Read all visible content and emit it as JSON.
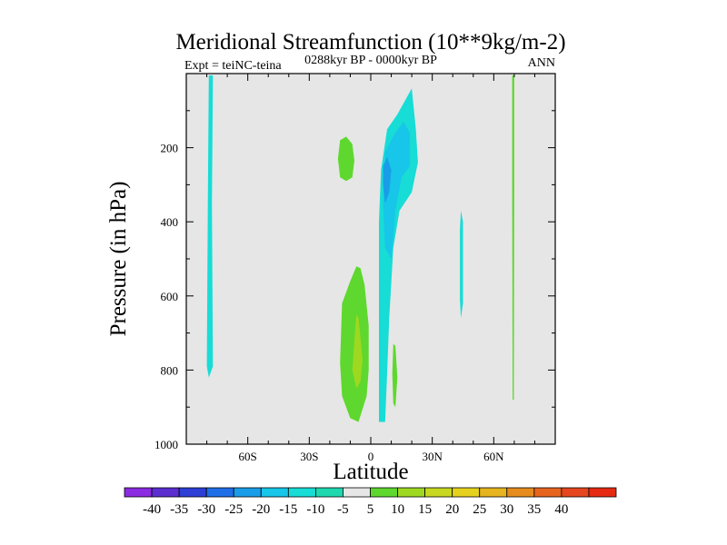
{
  "chart_data": {
    "type": "contour",
    "title": "Meridional Streamfunction (10**9kg/m-2)",
    "left_label": "Expt = teiNC-teina",
    "center_label": "0288kyr BP - 0000kyr BP",
    "right_label": "ANN",
    "xlabel": "Latitude",
    "ylabel": "Pressure (in hPa)",
    "xlim": [
      -90,
      90
    ],
    "ylim": [
      1000,
      0
    ],
    "x_ticks": [
      {
        "value": -60,
        "label": "60S"
      },
      {
        "value": -30,
        "label": "30S"
      },
      {
        "value": 0,
        "label": "0"
      },
      {
        "value": 30,
        "label": "30N"
      },
      {
        "value": 60,
        "label": "60N"
      }
    ],
    "y_ticks": [
      {
        "value": 200,
        "label": "200"
      },
      {
        "value": 400,
        "label": "400"
      },
      {
        "value": 600,
        "label": "600"
      },
      {
        "value": 800,
        "label": "800"
      },
      {
        "value": 1000,
        "label": "1000"
      }
    ],
    "background_color": "#e6e6e6",
    "colorbar": {
      "colors": [
        "#8b2be2",
        "#5c2ed0",
        "#2e3fd6",
        "#1f6ee8",
        "#1a9de8",
        "#17c6e8",
        "#18dcd6",
        "#1ed8b0",
        "#e6e6e6",
        "#5ed82e",
        "#9ed820",
        "#c8d820",
        "#e6d21e",
        "#e6b41e",
        "#e68c1e",
        "#e6641e",
        "#e6461e",
        "#e62a12"
      ],
      "labels": [
        "-40",
        "-35",
        "-30",
        "-25",
        "-20",
        "-15",
        "-10",
        "-5",
        "5",
        "10",
        "15",
        "20",
        "25",
        "30",
        "35",
        "40"
      ]
    },
    "contours": [
      {
        "level": "-5 to -10",
        "color": "#18dcd6",
        "points": [
          [
            -79,
            5
          ],
          [
            -77,
            5
          ],
          [
            -77.5,
            350
          ],
          [
            -77,
            790
          ],
          [
            -79,
            820
          ],
          [
            -80,
            790
          ],
          [
            -79.5,
            350
          ]
        ]
      },
      {
        "level": "5 to 10",
        "color": "#5ed82e",
        "points": [
          [
            -15,
            180
          ],
          [
            -12,
            170
          ],
          [
            -9,
            190
          ],
          [
            -8,
            235
          ],
          [
            -9,
            280
          ],
          [
            -12,
            290
          ],
          [
            -15,
            280
          ],
          [
            -16,
            230
          ]
        ]
      },
      {
        "level": "5 to 10",
        "color": "#5ed82e",
        "points": [
          [
            -7,
            520
          ],
          [
            -5,
            525
          ],
          [
            -3,
            570
          ],
          [
            -1,
            680
          ],
          [
            -1,
            800
          ],
          [
            -2,
            870
          ],
          [
            -6,
            940
          ],
          [
            -10,
            930
          ],
          [
            -14,
            870
          ],
          [
            -15,
            780
          ],
          [
            -14,
            620
          ],
          [
            -10,
            560
          ]
        ]
      },
      {
        "level": "10 to 15",
        "color": "#9ed820",
        "points": [
          [
            -7,
            650
          ],
          [
            -6,
            660
          ],
          [
            -4,
            770
          ],
          [
            -5,
            830
          ],
          [
            -7,
            850
          ],
          [
            -9,
            800
          ],
          [
            -8,
            720
          ]
        ]
      },
      {
        "level": "-5 to -10",
        "color": "#18dcd6",
        "points": [
          [
            5,
            260
          ],
          [
            8,
            150
          ],
          [
            13,
            110
          ],
          [
            18,
            60
          ],
          [
            20,
            40
          ],
          [
            22,
            150
          ],
          [
            23,
            240
          ],
          [
            20,
            320
          ],
          [
            14,
            370
          ],
          [
            11,
            470
          ],
          [
            9,
            660
          ],
          [
            8,
            810
          ],
          [
            7,
            940
          ],
          [
            4,
            940
          ],
          [
            4,
            600
          ],
          [
            4,
            400
          ]
        ]
      },
      {
        "level": "-10 to -15",
        "color": "#17c6e8",
        "points": [
          [
            7,
            210
          ],
          [
            12,
            160
          ],
          [
            16,
            130
          ],
          [
            19,
            160
          ],
          [
            19,
            250
          ],
          [
            15,
            280
          ],
          [
            12,
            370
          ],
          [
            10,
            500
          ],
          [
            7,
            470
          ],
          [
            6,
            350
          ]
        ]
      },
      {
        "level": "-15 to -20",
        "color": "#1a9de8",
        "points": [
          [
            6,
            250
          ],
          [
            8,
            225
          ],
          [
            10,
            260
          ],
          [
            9,
            320
          ],
          [
            7,
            350
          ],
          [
            6,
            300
          ]
        ]
      },
      {
        "level": "5 to 10",
        "color": "#5ed82e",
        "points": [
          [
            11,
            730
          ],
          [
            12,
            735
          ],
          [
            13,
            820
          ],
          [
            12,
            900
          ],
          [
            11,
            890
          ],
          [
            10.5,
            810
          ]
        ]
      },
      {
        "level": "-5 to -10",
        "color": "#18dcd6",
        "points": [
          [
            44,
            370
          ],
          [
            45,
            400
          ],
          [
            45,
            620
          ],
          [
            44,
            660
          ],
          [
            43.5,
            610
          ],
          [
            43.5,
            420
          ]
        ]
      },
      {
        "level": "5 to 10",
        "color": "#5ed82e",
        "points": [
          [
            69,
            5
          ],
          [
            70,
            5
          ],
          [
            70,
            300
          ],
          [
            69.8,
            880
          ],
          [
            69.2,
            880
          ],
          [
            69,
            300
          ]
        ]
      }
    ]
  }
}
